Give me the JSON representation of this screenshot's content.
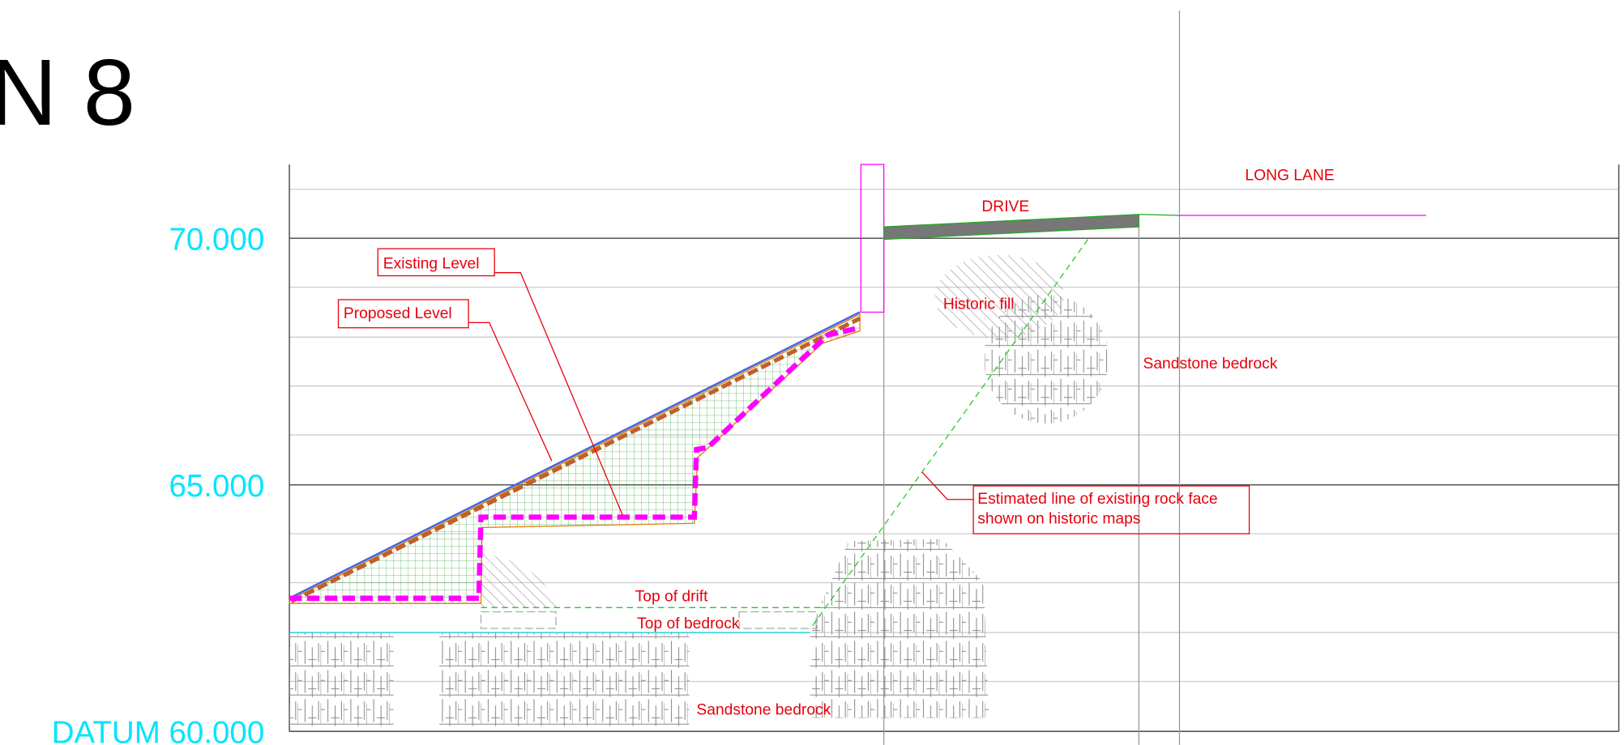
{
  "header": {
    "title": "N 8"
  },
  "levels": [
    "70.000",
    "65.000",
    "DATUM 60.000"
  ],
  "labels": {
    "long_lane": "LONG LANE",
    "drive": "DRIVE",
    "existing_level": "Existing Level",
    "proposed_level": "Proposed Level",
    "historic_fill": "Historic fill",
    "sandstone_upper": "Sandstone bedrock",
    "sandstone_lower": "Sandstone bedrock",
    "rock_face": [
      "Estimated line of existing rock face",
      "shown on historic maps"
    ],
    "top_of_drift": "Top of drift",
    "top_of_bedrock": "Top of bedrock"
  }
}
